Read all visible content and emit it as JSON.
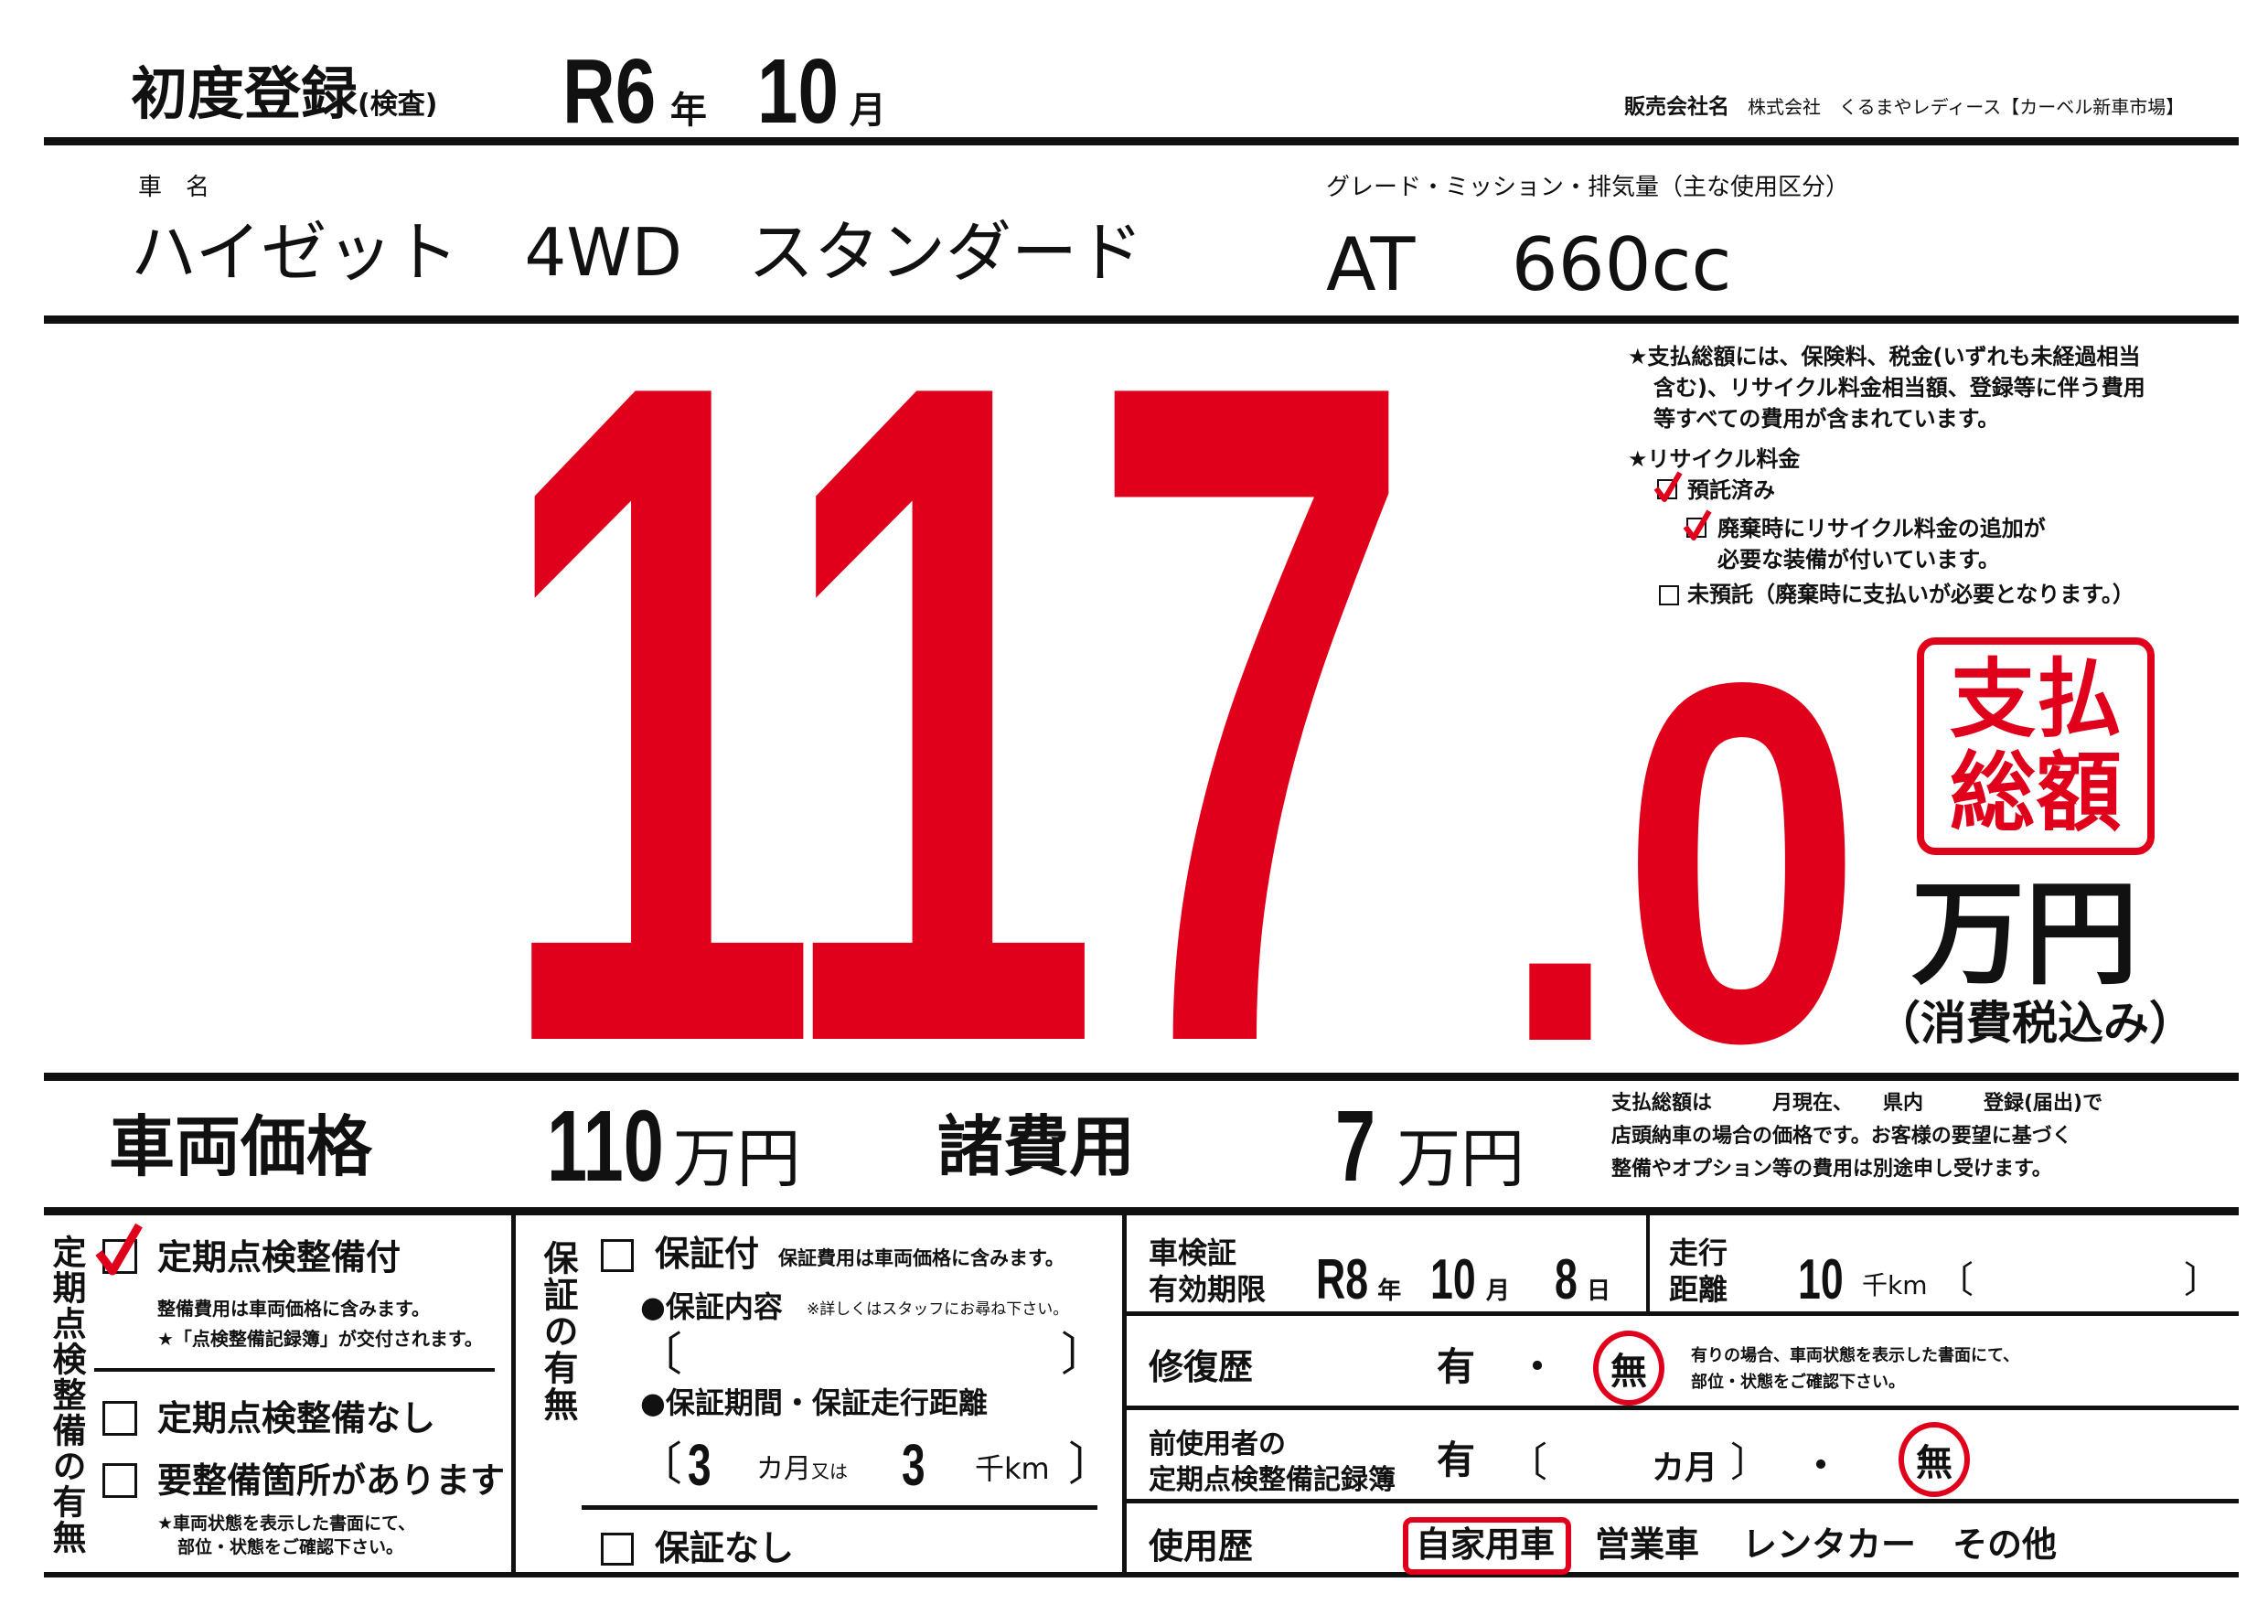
{
  "header": {
    "first_reg_label": "初度登録",
    "first_reg_sub": "(検査)",
    "era_year": "R6",
    "year_unit": "年",
    "month": "10",
    "month_unit": "月",
    "seller_label": "販売会社名",
    "seller_name": "株式会社　くるまやレディース【カーベル新車市場】"
  },
  "vehicle": {
    "name_label": "車　名",
    "name": "ハイゼット　4WD　スタンダード",
    "grade_label": "グレード・ミッション・排気量（主な使用区分）",
    "grade": "AT　 660cc"
  },
  "price": {
    "total_int": "117",
    "total_dec": ".0",
    "badge_line1": "支払",
    "badge_line2": "総額",
    "unit": "万円",
    "tax_note": "（消費税込み）",
    "accent_color": "#e0001b"
  },
  "notes": {
    "total_note": [
      "★支払総額には、保険料、税金(いずれも未経過相当",
      "含む)、リサイクル料金相当額、登録等に伴う費用",
      "等すべての費用が含まれています。"
    ],
    "recycle_title": "★リサイクル料金",
    "recycle_deposited": {
      "label": "預託済み",
      "checked": true
    },
    "recycle_extra": {
      "label1": "廃棄時にリサイクル料金の追加が",
      "label2": "必要な装備が付いています。",
      "checked": true
    },
    "recycle_not": {
      "label": "未預託（廃棄時に支払いが必要となります。）",
      "checked": false
    }
  },
  "breakdown": {
    "vehicle_price_label": "車両価格",
    "vehicle_price": "110",
    "unit": "万円",
    "fees_label": "諸費用",
    "fees": "7",
    "note": [
      "支払総額は　　　月現在、　　県内　　　登録(届出)で",
      "店頭納車の場合の価格です。お客様の要望に基づく",
      "整備やオプション等の費用は別途申し受けます。"
    ]
  },
  "inspection": {
    "title": "定期点検整備の有無",
    "with": {
      "label": "定期点検整備付",
      "checked": true,
      "note1": "整備費用は車両価格に含みます。",
      "note2": "★「点検整備記録簿」が交付されます。"
    },
    "without": {
      "label": "定期点検整備なし",
      "checked": false
    },
    "needs": {
      "label": "要整備箇所があります",
      "checked": false,
      "note1": "★車両状態を表示した書面にて、",
      "note2": "部位・状態をご確認下さい。"
    }
  },
  "warranty": {
    "title": "保証の有無",
    "with": {
      "label": "保証付",
      "checked": false,
      "note": "保証費用は車両価格に含みます。"
    },
    "content_label": "●保証内容",
    "content_note": "※詳しくはスタッフにお尋ね下さい。",
    "content_value": "",
    "period_label": "●保証期間・保証走行距離",
    "months": "3",
    "months_unit": "カ月",
    "or": "又は",
    "distance": "3",
    "distance_unit": "千km",
    "without": {
      "label": "保証なし",
      "checked": false
    }
  },
  "details": {
    "shaken_label1": "車検証",
    "shaken_label2": "有効期限",
    "shaken_era": "R8",
    "year_unit": "年",
    "shaken_month": "10",
    "month_unit": "月",
    "shaken_day": "8",
    "day_unit": "日",
    "mileage_label1": "走行",
    "mileage_label2": "距離",
    "mileage": "10",
    "mileage_unit": "千km",
    "mileage_note": "",
    "repair_label": "修復歴",
    "yes": "有",
    "dot": "・",
    "no": "無",
    "repair_selected": "無",
    "repair_note1": "有りの場合、車両状態を表示した書面にて、",
    "repair_note2": "部位・状態をご確認下さい。",
    "record_label1": "前使用者の",
    "record_label2": "定期点検整備記録簿",
    "record_months_unit": "カ月",
    "record_selected": "無",
    "usage_label": "使用歴",
    "usage_options": [
      "自家用車",
      "営業車",
      "レンタカー",
      "その他"
    ],
    "usage_selected": "自家用車"
  }
}
